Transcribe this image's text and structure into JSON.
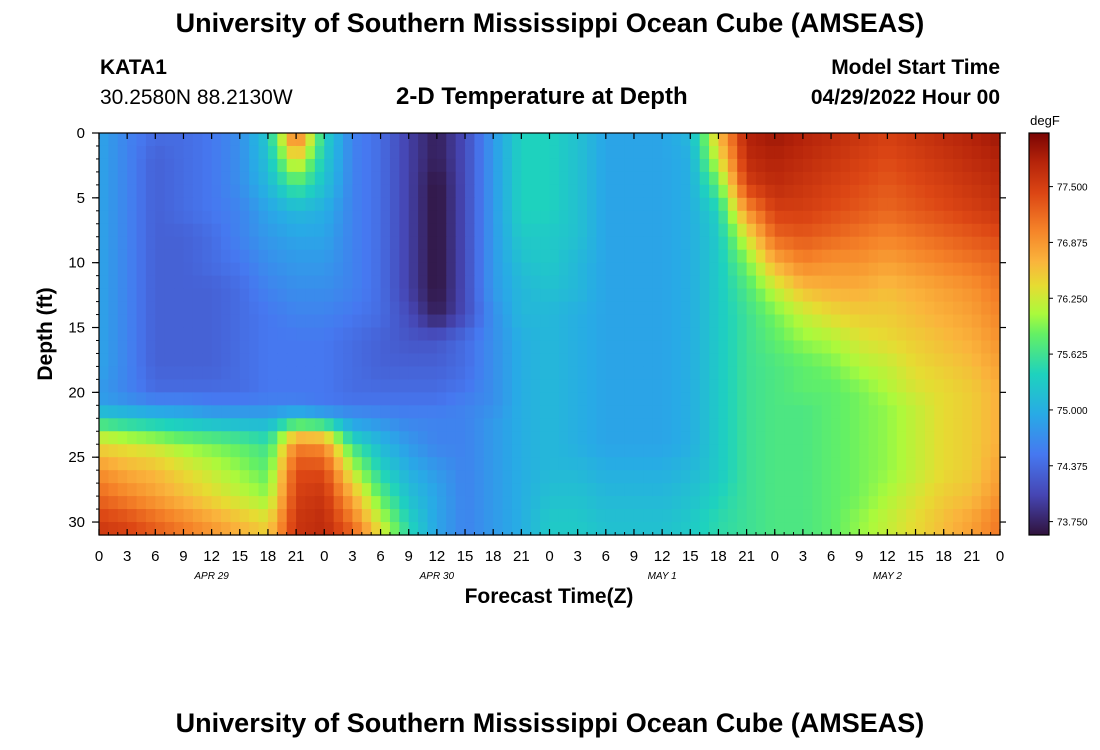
{
  "header": {
    "title": "University of Southern Mississippi Ocean Cube (AMSEAS)",
    "station": "KATA1",
    "coords": "30.2580N  88.2130W",
    "plot_title": "2-D Temperature at Depth",
    "model_start_label": "Model Start Time",
    "model_start_value": "04/29/2022 Hour 00"
  },
  "footer": {
    "title": "University of Southern Mississippi Ocean Cube (AMSEAS)"
  },
  "chart_data": {
    "type": "heatmap",
    "title": "2-D Temperature at Depth",
    "xlabel": "Forecast Time(Z)",
    "ylabel": "Depth (ft)",
    "x_hours_range": [
      0,
      96
    ],
    "y_range": [
      0,
      31
    ],
    "x_tick_labels": [
      "0",
      "3",
      "6",
      "9",
      "12",
      "15",
      "18",
      "21",
      "0",
      "3",
      "6",
      "9",
      "12",
      "15",
      "18",
      "21",
      "0",
      "3",
      "6",
      "9",
      "12",
      "15",
      "18",
      "21",
      "0",
      "3",
      "6",
      "9",
      "12",
      "15",
      "18",
      "21",
      "0"
    ],
    "y_ticks": [
      0,
      5,
      10,
      15,
      20,
      25,
      30
    ],
    "date_labels": [
      {
        "hour": 12,
        "label": "APR 29"
      },
      {
        "hour": 36,
        "label": "APR 30"
      },
      {
        "hour": 60,
        "label": "MAY 1"
      },
      {
        "hour": 84,
        "label": "MAY 2"
      }
    ],
    "colorbar": {
      "unit": "degF",
      "range": [
        73.6,
        78.1
      ],
      "ticks": [
        "73.750",
        "74.375",
        "75.000",
        "75.625",
        "76.250",
        "76.875",
        "77.500"
      ]
    },
    "depths_ft": [
      0,
      2,
      4,
      6,
      8,
      10,
      12,
      14,
      16,
      18,
      20,
      21,
      22,
      23,
      24,
      26,
      28,
      30,
      31
    ],
    "hours": [
      0,
      3,
      6,
      9,
      12,
      15,
      18,
      21,
      24,
      27,
      30,
      33,
      36,
      39,
      42,
      45,
      48,
      51,
      54,
      57,
      60,
      63,
      66,
      69,
      72,
      75,
      78,
      81,
      84,
      87,
      90,
      93,
      96
    ],
    "temperature_degF": [
      [
        74.9,
        74.6,
        74.4,
        74.4,
        74.5,
        74.7,
        75.3,
        77.3,
        75.4,
        74.6,
        74.4,
        74.0,
        73.7,
        74.1,
        74.8,
        75.4,
        75.4,
        75.2,
        74.9,
        74.9,
        74.9,
        75.1,
        76.6,
        77.8,
        77.9,
        77.8,
        77.7,
        77.6,
        77.5,
        77.6,
        77.7,
        77.8,
        77.9
      ],
      [
        74.9,
        74.6,
        74.3,
        74.4,
        74.5,
        74.7,
        75.2,
        76.5,
        75.3,
        74.6,
        74.4,
        74.0,
        73.7,
        74.1,
        74.8,
        75.4,
        75.4,
        75.2,
        74.9,
        74.9,
        74.9,
        75.0,
        76.3,
        77.7,
        77.8,
        77.7,
        77.6,
        77.5,
        77.4,
        77.5,
        77.6,
        77.7,
        77.8
      ],
      [
        74.9,
        74.6,
        74.3,
        74.4,
        74.5,
        74.7,
        75.1,
        75.7,
        75.2,
        74.6,
        74.4,
        74.0,
        73.6,
        74.1,
        74.8,
        75.4,
        75.4,
        75.2,
        74.9,
        74.9,
        74.9,
        75.0,
        75.8,
        77.5,
        77.7,
        77.6,
        77.5,
        77.4,
        77.3,
        77.4,
        77.5,
        77.6,
        77.7
      ],
      [
        74.9,
        74.6,
        74.3,
        74.4,
        74.5,
        74.6,
        74.9,
        75.1,
        75.0,
        74.6,
        74.4,
        74.0,
        73.6,
        74.1,
        74.8,
        75.4,
        75.4,
        75.2,
        74.9,
        74.9,
        74.9,
        75.0,
        75.4,
        76.9,
        77.5,
        77.5,
        77.4,
        77.3,
        77.2,
        77.3,
        77.4,
        77.5,
        77.6
      ],
      [
        74.9,
        74.6,
        74.3,
        74.3,
        74.4,
        74.6,
        74.8,
        74.9,
        74.9,
        74.6,
        74.4,
        74.0,
        73.6,
        74.1,
        74.8,
        75.3,
        75.3,
        75.2,
        74.9,
        74.9,
        74.9,
        75.0,
        75.3,
        76.3,
        77.2,
        77.3,
        77.2,
        77.1,
        77.0,
        77.1,
        77.2,
        77.3,
        77.4
      ],
      [
        74.9,
        74.6,
        74.3,
        74.3,
        74.4,
        74.5,
        74.7,
        74.8,
        74.8,
        74.6,
        74.4,
        74.0,
        73.6,
        74.1,
        74.8,
        75.2,
        75.3,
        75.1,
        74.9,
        74.9,
        74.9,
        75.0,
        75.3,
        75.9,
        76.7,
        77.0,
        76.9,
        76.9,
        76.8,
        76.9,
        77.0,
        77.1,
        77.2
      ],
      [
        74.9,
        74.6,
        74.3,
        74.3,
        74.3,
        74.4,
        74.6,
        74.7,
        74.7,
        74.6,
        74.4,
        74.0,
        73.6,
        74.1,
        74.8,
        75.1,
        75.2,
        75.1,
        74.9,
        74.9,
        74.9,
        75.0,
        75.3,
        75.7,
        76.2,
        76.6,
        76.7,
        76.7,
        76.6,
        76.7,
        76.8,
        76.9,
        77.1
      ],
      [
        74.9,
        74.6,
        74.3,
        74.3,
        74.3,
        74.4,
        74.5,
        74.6,
        74.6,
        74.5,
        74.4,
        74.1,
        73.7,
        74.1,
        74.7,
        75.1,
        75.1,
        75.0,
        74.9,
        74.9,
        74.9,
        75.0,
        75.3,
        75.6,
        75.9,
        76.2,
        76.4,
        76.5,
        76.5,
        76.6,
        76.7,
        76.8,
        77.0
      ],
      [
        74.9,
        74.6,
        74.3,
        74.3,
        74.3,
        74.4,
        74.5,
        74.5,
        74.5,
        74.4,
        74.3,
        74.2,
        74.2,
        74.4,
        74.7,
        75.0,
        75.1,
        75.0,
        74.9,
        74.9,
        74.9,
        75.0,
        75.3,
        75.6,
        75.8,
        76.0,
        76.1,
        76.3,
        76.4,
        76.5,
        76.6,
        76.7,
        76.9
      ],
      [
        74.9,
        74.6,
        74.3,
        74.3,
        74.3,
        74.4,
        74.5,
        74.5,
        74.5,
        74.4,
        74.3,
        74.3,
        74.3,
        74.4,
        74.7,
        75.0,
        75.1,
        75.0,
        74.9,
        74.9,
        74.9,
        75.0,
        75.3,
        75.6,
        75.7,
        75.8,
        75.9,
        76.1,
        76.2,
        76.4,
        76.5,
        76.6,
        76.8
      ],
      [
        74.8,
        74.6,
        74.4,
        74.4,
        74.4,
        74.4,
        74.5,
        74.5,
        74.5,
        74.4,
        74.4,
        74.4,
        74.4,
        74.5,
        74.7,
        75.0,
        75.1,
        75.0,
        74.9,
        74.9,
        74.9,
        75.0,
        75.3,
        75.6,
        75.7,
        75.8,
        75.8,
        75.9,
        76.1,
        76.3,
        76.4,
        76.5,
        76.7
      ],
      [
        74.9,
        74.8,
        74.7,
        74.7,
        74.6,
        74.6,
        74.6,
        74.6,
        74.5,
        74.5,
        74.5,
        74.5,
        74.5,
        74.6,
        74.7,
        75.0,
        75.1,
        75.0,
        74.9,
        74.9,
        74.9,
        75.0,
        75.3,
        75.6,
        75.7,
        75.7,
        75.8,
        75.9,
        76.0,
        76.2,
        76.4,
        76.5,
        76.7
      ],
      [
        75.4,
        75.3,
        75.2,
        75.1,
        75.0,
        75.0,
        75.0,
        75.3,
        75.1,
        74.8,
        74.7,
        74.6,
        74.6,
        74.6,
        74.8,
        75.0,
        75.1,
        75.0,
        74.9,
        74.9,
        74.9,
        75.0,
        75.3,
        75.6,
        75.7,
        75.7,
        75.8,
        75.9,
        76.0,
        76.2,
        76.4,
        76.5,
        76.7
      ],
      [
        76.0,
        75.8,
        75.7,
        75.6,
        75.5,
        75.4,
        75.3,
        76.3,
        76.2,
        75.1,
        74.9,
        74.7,
        74.6,
        74.6,
        74.8,
        75.0,
        75.1,
        75.0,
        74.9,
        74.9,
        74.9,
        75.0,
        75.3,
        75.6,
        75.7,
        75.7,
        75.8,
        75.9,
        76.0,
        76.2,
        76.4,
        76.5,
        76.7
      ],
      [
        76.4,
        76.3,
        76.2,
        76.0,
        75.9,
        75.8,
        75.6,
        77.0,
        76.9,
        75.6,
        75.1,
        74.8,
        74.6,
        74.6,
        74.8,
        75.0,
        75.1,
        75.0,
        74.9,
        74.9,
        74.9,
        75.0,
        75.3,
        75.6,
        75.7,
        75.7,
        75.8,
        75.9,
        76.0,
        76.2,
        76.4,
        76.5,
        76.7
      ],
      [
        76.9,
        76.7,
        76.6,
        76.4,
        76.2,
        76.0,
        75.8,
        77.4,
        77.4,
        76.2,
        75.4,
        75.0,
        74.8,
        74.6,
        74.8,
        75.0,
        75.1,
        75.1,
        75.0,
        75.0,
        75.0,
        75.1,
        75.3,
        75.6,
        75.7,
        75.7,
        75.8,
        75.9,
        76.0,
        76.2,
        76.4,
        76.5,
        76.8
      ],
      [
        77.2,
        77.0,
        76.8,
        76.6,
        76.4,
        76.2,
        76.0,
        77.5,
        77.6,
        76.7,
        75.8,
        75.2,
        74.9,
        74.6,
        74.8,
        75.0,
        75.2,
        75.2,
        75.1,
        75.1,
        75.1,
        75.2,
        75.4,
        75.6,
        75.7,
        75.7,
        75.8,
        75.9,
        76.1,
        76.3,
        76.5,
        76.6,
        76.9
      ],
      [
        77.5,
        77.4,
        77.2,
        77.0,
        76.8,
        76.6,
        76.4,
        77.6,
        77.7,
        77.1,
        76.2,
        75.4,
        74.9,
        74.6,
        74.8,
        75.0,
        75.3,
        75.3,
        75.2,
        75.2,
        75.2,
        75.3,
        75.5,
        75.6,
        75.7,
        75.7,
        75.8,
        76.0,
        76.2,
        76.4,
        76.6,
        76.8,
        77.1
      ],
      [
        77.6,
        77.5,
        77.3,
        77.1,
        76.9,
        76.7,
        76.5,
        77.6,
        77.7,
        77.3,
        76.4,
        75.5,
        74.9,
        74.6,
        74.8,
        75.0,
        75.3,
        75.3,
        75.2,
        75.2,
        75.2,
        75.3,
        75.5,
        75.6,
        75.7,
        75.7,
        75.8,
        76.0,
        76.2,
        76.4,
        76.6,
        76.8,
        77.1
      ]
    ]
  }
}
